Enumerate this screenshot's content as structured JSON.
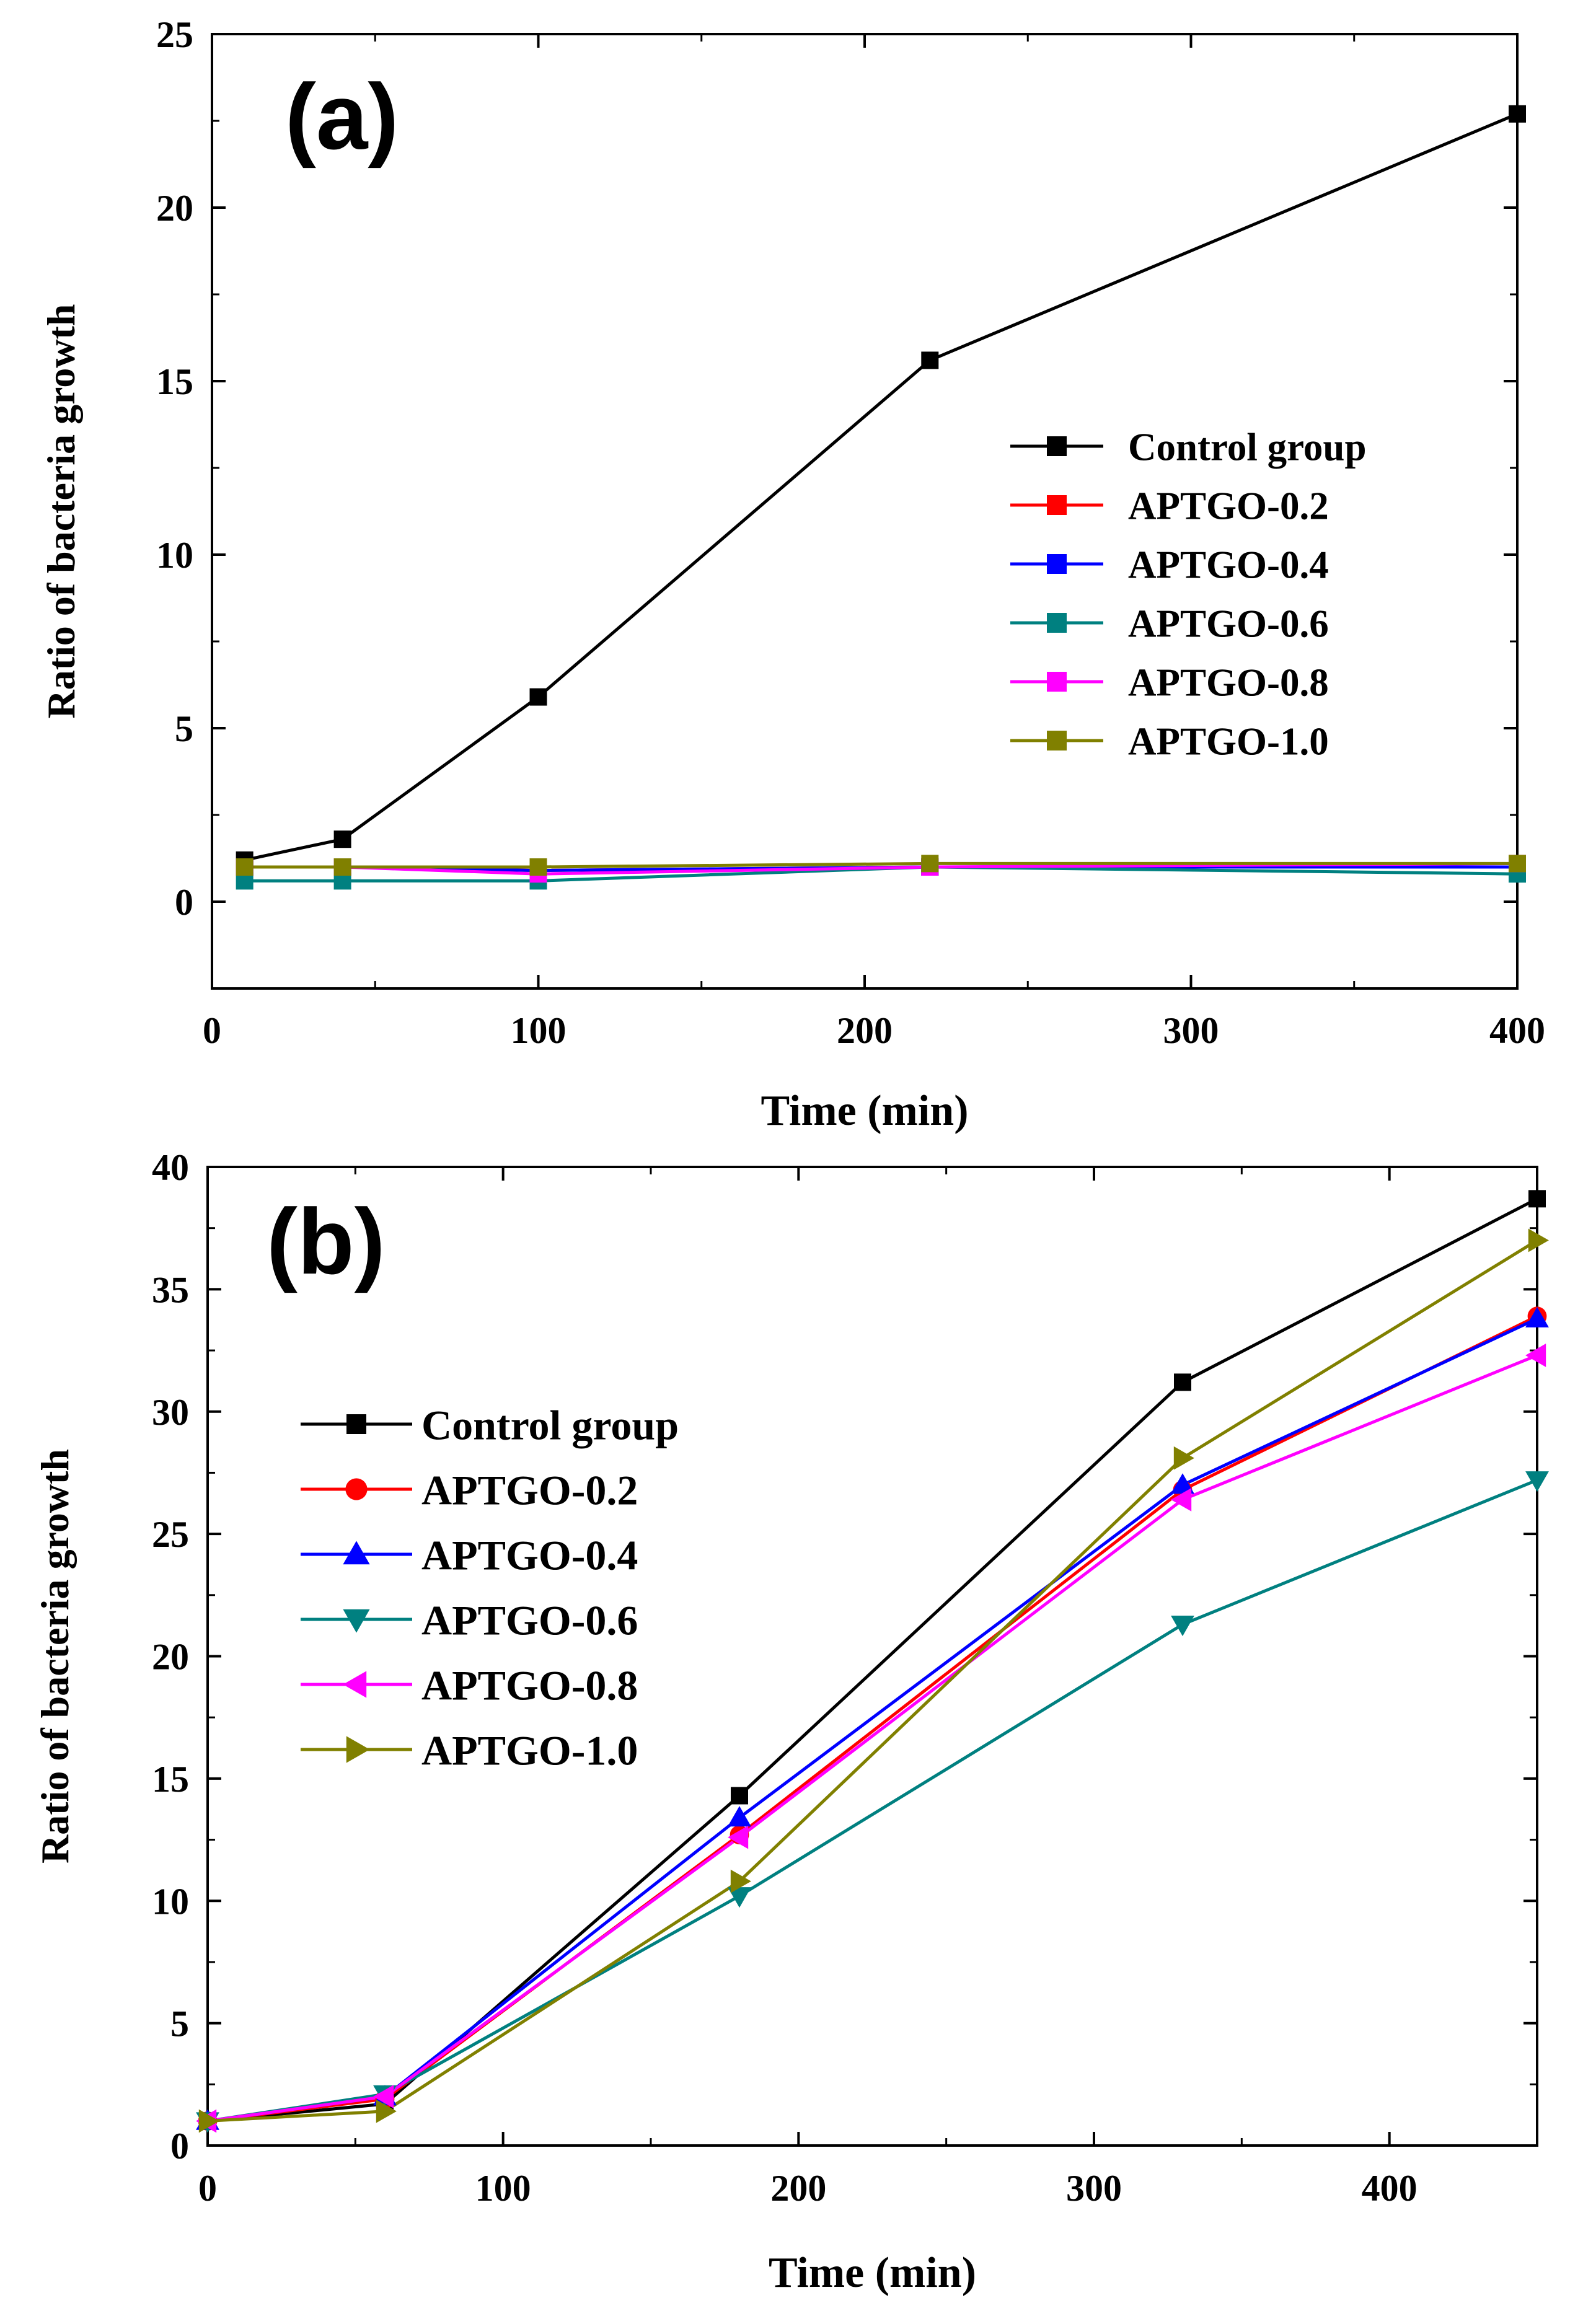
{
  "chart_data": [
    {
      "type": "line",
      "panel_label": "(a)",
      "title": "",
      "xlabel": "Time (min)",
      "ylabel": "Ratio of bacteria growth",
      "xlim": [
        0,
        400
      ],
      "ylim": [
        -2.5,
        25
      ],
      "xticks": [
        0,
        100,
        200,
        300,
        400
      ],
      "yticks": [
        0,
        5,
        10,
        15,
        20,
        25
      ],
      "xtick_labels": [
        "0",
        "100",
        "200",
        "300",
        "400"
      ],
      "ytick_labels": [
        "0",
        "5",
        "10",
        "15",
        "20",
        "25"
      ],
      "grid": false,
      "legend_position": "center-right",
      "x": [
        10,
        40,
        100,
        220,
        400
      ],
      "series": [
        {
          "name": "Control group",
          "color": "#000000",
          "marker": "square",
          "values": [
            1.2,
            1.8,
            5.9,
            15.6,
            22.7
          ]
        },
        {
          "name": "APTGO-0.2",
          "color": "#ff0000",
          "marker": "square",
          "values": [
            1.0,
            1.0,
            0.9,
            1.0,
            1.0
          ]
        },
        {
          "name": "APTGO-0.4",
          "color": "#0000ff",
          "marker": "square",
          "values": [
            1.0,
            1.0,
            0.9,
            1.0,
            1.0
          ]
        },
        {
          "name": "APTGO-0.6",
          "color": "#008080",
          "marker": "square",
          "values": [
            0.6,
            0.6,
            0.6,
            1.0,
            0.8
          ]
        },
        {
          "name": "APTGO-0.8",
          "color": "#ff00ff",
          "marker": "square",
          "values": [
            1.0,
            1.0,
            0.8,
            1.0,
            1.1
          ]
        },
        {
          "name": "APTGO-1.0",
          "color": "#808000",
          "marker": "square",
          "values": [
            1.0,
            1.0,
            1.0,
            1.1,
            1.1
          ]
        }
      ]
    },
    {
      "type": "line",
      "panel_label": "(b)",
      "title": "",
      "xlabel": "Time (min)",
      "ylabel": "Ratio of bacteria growth",
      "xlim": [
        0,
        450
      ],
      "ylim": [
        0,
        40
      ],
      "xticks": [
        0,
        100,
        200,
        300,
        400
      ],
      "yticks": [
        0,
        5,
        10,
        15,
        20,
        25,
        30,
        35,
        40
      ],
      "xtick_labels": [
        "0",
        "100",
        "200",
        "300",
        "400"
      ],
      "ytick_labels": [
        "0",
        "5",
        "10",
        "15",
        "20",
        "25",
        "30",
        "35",
        "40"
      ],
      "grid": false,
      "legend_position": "center-left",
      "x": [
        0,
        60,
        180,
        330,
        450
      ],
      "series": [
        {
          "name": "Control group",
          "color": "#000000",
          "marker": "square",
          "values": [
            1.0,
            1.7,
            14.3,
            31.2,
            38.7
          ]
        },
        {
          "name": "APTGO-0.2",
          "color": "#ff0000",
          "marker": "circle",
          "values": [
            1.0,
            1.9,
            12.7,
            26.8,
            33.9
          ]
        },
        {
          "name": "APTGO-0.4",
          "color": "#0000ff",
          "marker": "triangle-up",
          "values": [
            1.0,
            2.0,
            13.4,
            27.0,
            33.8
          ]
        },
        {
          "name": "APTGO-0.6",
          "color": "#008080",
          "marker": "triangle-down",
          "values": [
            1.0,
            2.1,
            10.2,
            21.3,
            27.2
          ]
        },
        {
          "name": "APTGO-0.8",
          "color": "#ff00ff",
          "marker": "triangle-left",
          "values": [
            1.0,
            2.0,
            12.6,
            26.4,
            32.3
          ]
        },
        {
          "name": "APTGO-1.0",
          "color": "#808000",
          "marker": "triangle-right",
          "values": [
            1.0,
            1.4,
            10.8,
            28.1,
            37.0
          ]
        }
      ]
    }
  ]
}
